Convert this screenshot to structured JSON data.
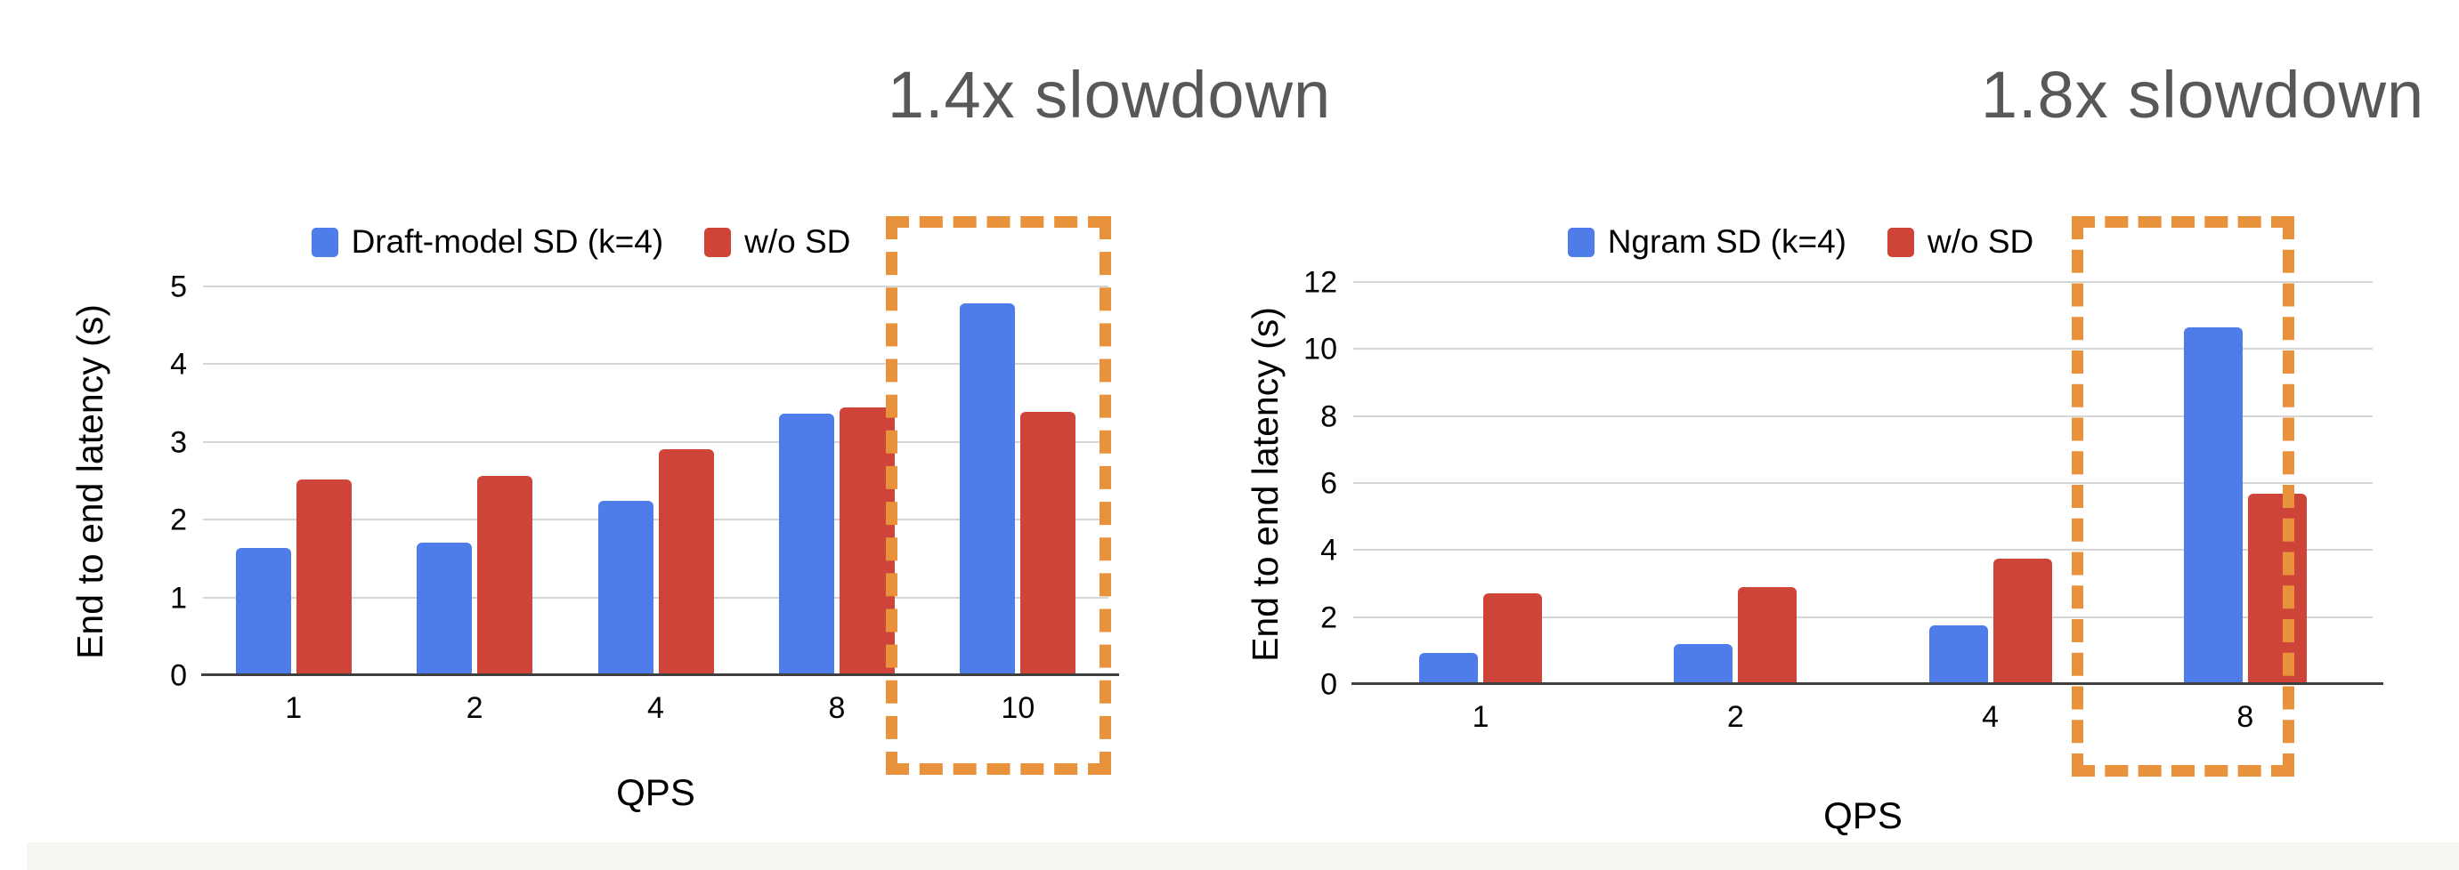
{
  "page": {
    "background": "#FFFFFF",
    "bottom_strip_color": "#F8F6F2"
  },
  "style": {
    "annotation_color": "#58585A",
    "highlight_color": "#E8923B",
    "grid_color": "#D6D6D6",
    "axis_color": "#3F3F3F",
    "text_color": "#000000"
  },
  "chart_data": [
    {
      "type": "bar",
      "title": "",
      "categories": [
        "1",
        "2",
        "4",
        "8",
        "10"
      ],
      "series": [
        {
          "name": "Draft-model SD (k=4)",
          "color": "#4E7CE8",
          "values": [
            1.65,
            1.72,
            2.25,
            3.38,
            4.79
          ]
        },
        {
          "name": "w/o SD",
          "color": "#CF4439",
          "values": [
            2.53,
            2.58,
            2.92,
            3.46,
            3.4
          ]
        }
      ],
      "xlabel": "QPS",
      "ylabel": "End to end latency (s)",
      "ylim": [
        0,
        5
      ],
      "yticks": [
        0,
        1,
        2,
        3,
        4,
        5
      ],
      "grid": true,
      "legend_position": "top",
      "annotation": "1.4x slowdown",
      "highlighted_category": "10"
    },
    {
      "type": "bar",
      "title": "",
      "categories": [
        "1",
        "2",
        "4",
        "8"
      ],
      "series": [
        {
          "name": "Ngram SD (k=4)",
          "color": "#4E7CE8",
          "values": [
            0.96,
            1.21,
            1.78,
            10.67
          ]
        },
        {
          "name": "w/o SD",
          "color": "#CF4439",
          "values": [
            2.73,
            2.93,
            3.76,
            5.7
          ]
        }
      ],
      "xlabel": "QPS",
      "ylabel": "End to end latency (s)",
      "ylim": [
        0,
        12
      ],
      "yticks": [
        0,
        2,
        4,
        6,
        8,
        10,
        12
      ],
      "grid": true,
      "legend_position": "top",
      "annotation": "1.8x slowdown",
      "highlighted_category": "8"
    }
  ]
}
